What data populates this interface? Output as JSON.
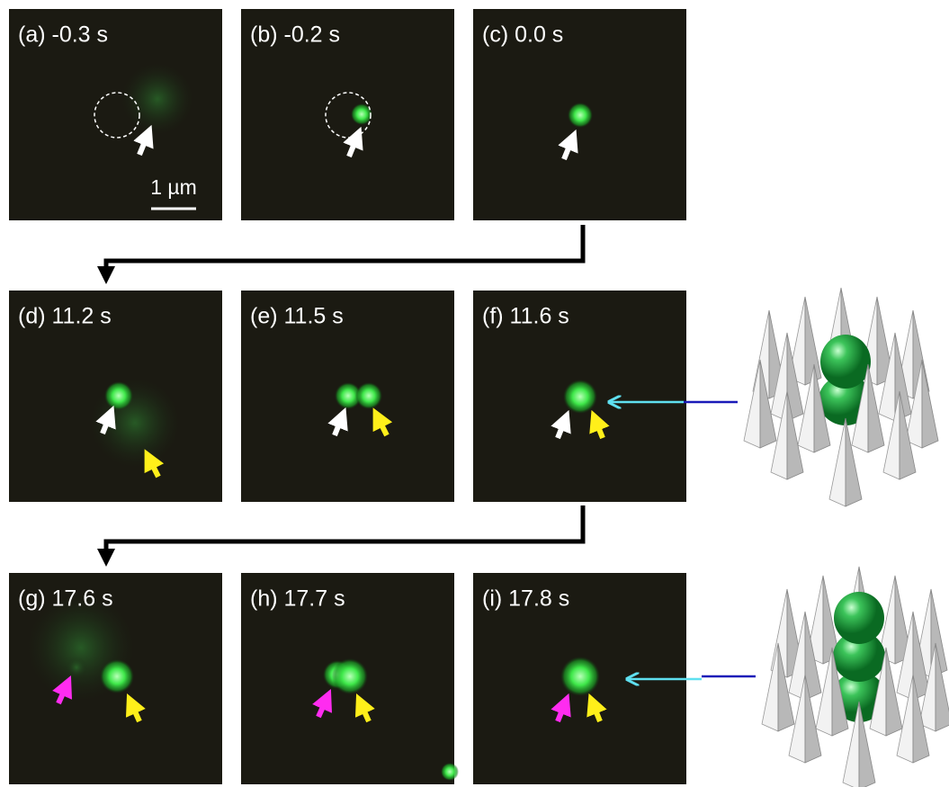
{
  "panels": [
    {
      "label": "(a) -0.3 s"
    },
    {
      "label": "(b) -0.2 s"
    },
    {
      "label": "(c) 0.0 s"
    },
    {
      "label": "(d) 11.2 s"
    },
    {
      "label": "(e) 11.5 s"
    },
    {
      "label": "(f) 11.6 s"
    },
    {
      "label": "(g) 17.6 s"
    },
    {
      "label": "(h) 17.7 s"
    },
    {
      "label": "(i) 17.8 s"
    }
  ],
  "scale_bar": "1 µm"
}
